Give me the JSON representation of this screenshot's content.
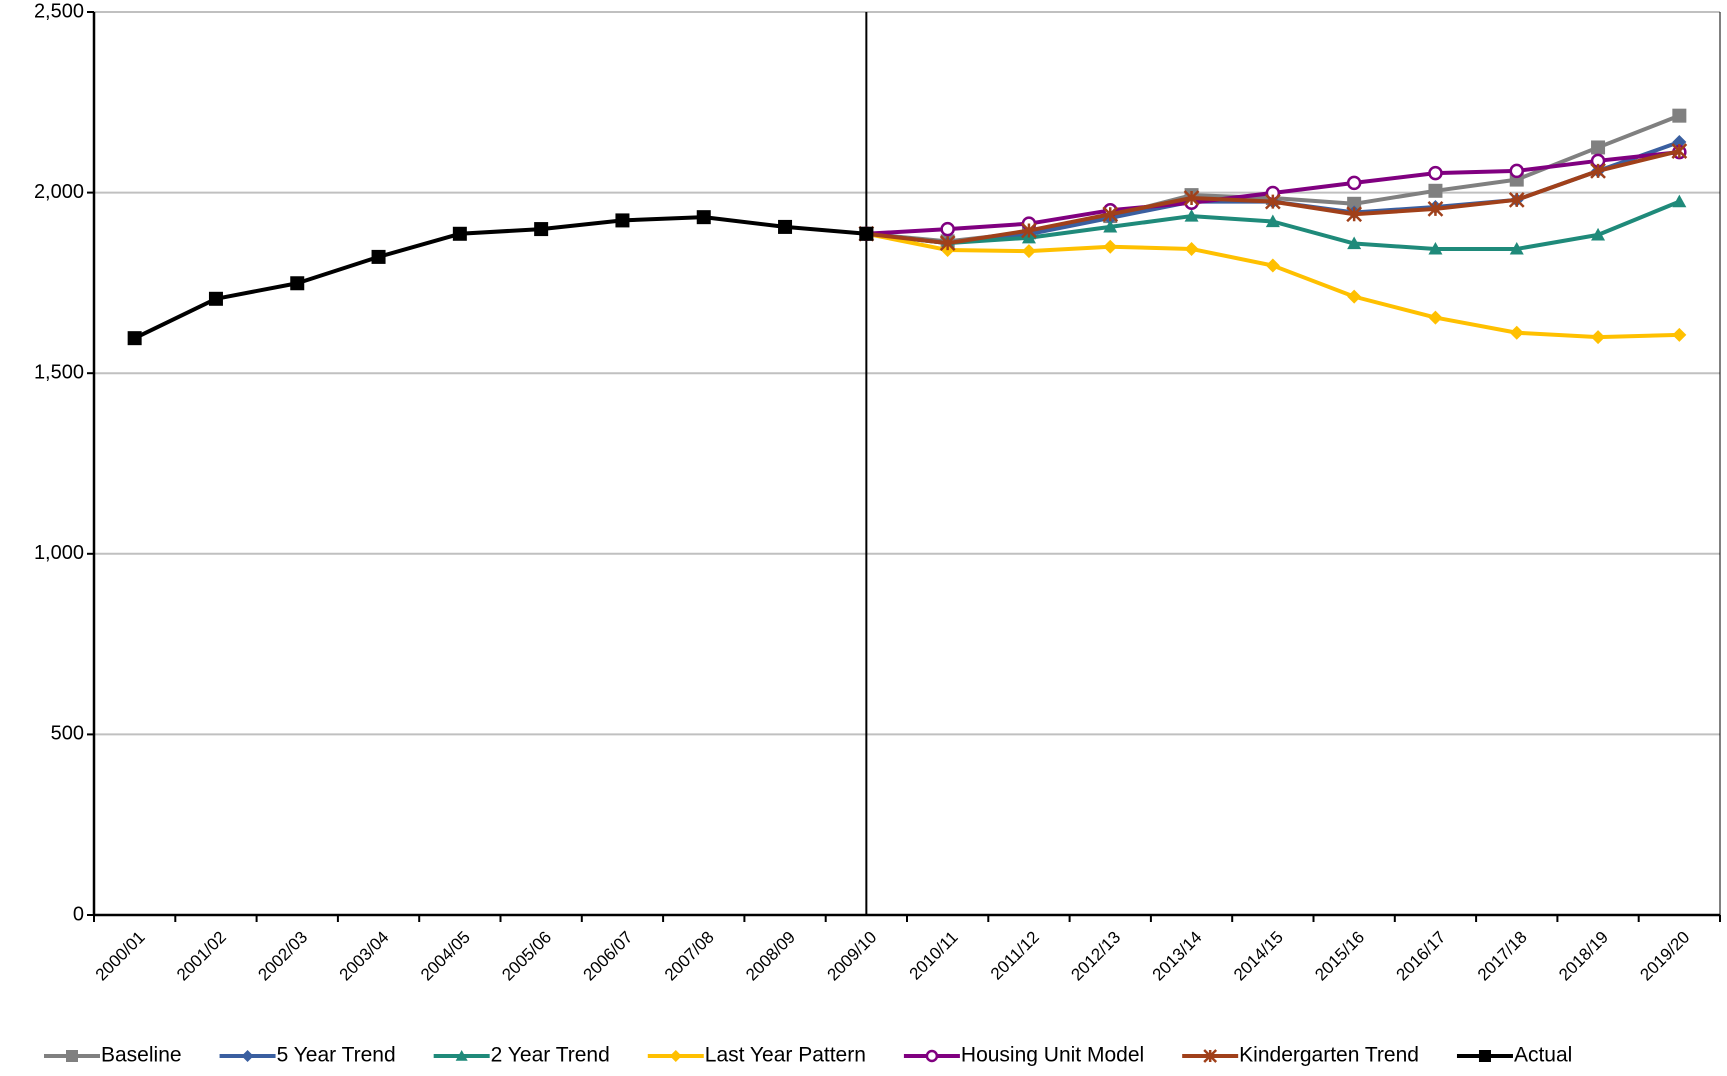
{
  "chart_data": {
    "type": "line",
    "categories": [
      "2000/01",
      "2001/02",
      "2002/03",
      "2003/04",
      "2004/05",
      "2005/06",
      "2006/07",
      "2007/08",
      "2008/09",
      "2009/10",
      "2010/11",
      "2011/12",
      "2012/13",
      "2013/14",
      "2014/15",
      "2015/16",
      "2016/17",
      "2017/18",
      "2018/19",
      "2019/20"
    ],
    "ylim": [
      0,
      2500
    ],
    "yticks": [
      0,
      500,
      {
        "value": 1000,
        "label": "1,000"
      },
      {
        "value": 1500,
        "label": "1,500"
      },
      {
        "value": 2000,
        "label": "2,000"
      },
      {
        "value": 2500,
        "label": "2,500"
      }
    ],
    "grid": true,
    "legend": "bottom",
    "series": [
      {
        "name": "Baseline",
        "color": "#808080",
        "marker": "square",
        "values": [
          null,
          null,
          null,
          null,
          null,
          null,
          null,
          null,
          null,
          1886,
          1865,
          1890,
          1935,
          1993,
          1985,
          1969,
          2005,
          2036,
          2125,
          2213
        ]
      },
      {
        "name": "5 Year Trend",
        "color": "#3a5fa0",
        "marker": "diamond",
        "values": [
          null,
          null,
          null,
          null,
          null,
          null,
          null,
          null,
          null,
          1886,
          1860,
          1885,
          1930,
          1975,
          1975,
          1945,
          1960,
          1980,
          2060,
          2140
        ]
      },
      {
        "name": "2 Year Trend",
        "color": "#1f8a7a",
        "marker": "triangle",
        "values": [
          null,
          null,
          null,
          null,
          null,
          null,
          null,
          null,
          null,
          1886,
          1860,
          1875,
          1905,
          1935,
          1920,
          1859,
          1844,
          1844,
          1883,
          1975
        ]
      },
      {
        "name": "Last Year Pattern",
        "color": "#ffc000",
        "marker": "diamond",
        "values": [
          null,
          null,
          null,
          null,
          null,
          null,
          null,
          null,
          null,
          1886,
          1841,
          1838,
          1850,
          1844,
          1798,
          1712,
          1654,
          1612,
          1600,
          1606
        ]
      },
      {
        "name": "Housing Unit Model",
        "color": "#800080",
        "marker": "circle",
        "values": [
          null,
          null,
          null,
          null,
          null,
          null,
          null,
          null,
          null,
          1886,
          1899,
          1914,
          1951,
          1972,
          1999,
          2027,
          2054,
          2060,
          2088,
          2112
        ]
      },
      {
        "name": "Kindergarten Trend",
        "color": "#a0401a",
        "marker": "star",
        "values": [
          null,
          null,
          null,
          null,
          null,
          null,
          null,
          null,
          null,
          1886,
          1860,
          1895,
          1940,
          1985,
          1975,
          1940,
          1955,
          1980,
          2060,
          2115
        ]
      },
      {
        "name": "Actual",
        "color": "#000000",
        "marker": "square",
        "values": [
          1597,
          1706,
          1749,
          1822,
          1886,
          1899,
          1923,
          1932,
          1905,
          1886,
          null,
          null,
          null,
          null,
          null,
          null,
          null,
          null,
          null,
          null
        ]
      }
    ]
  }
}
